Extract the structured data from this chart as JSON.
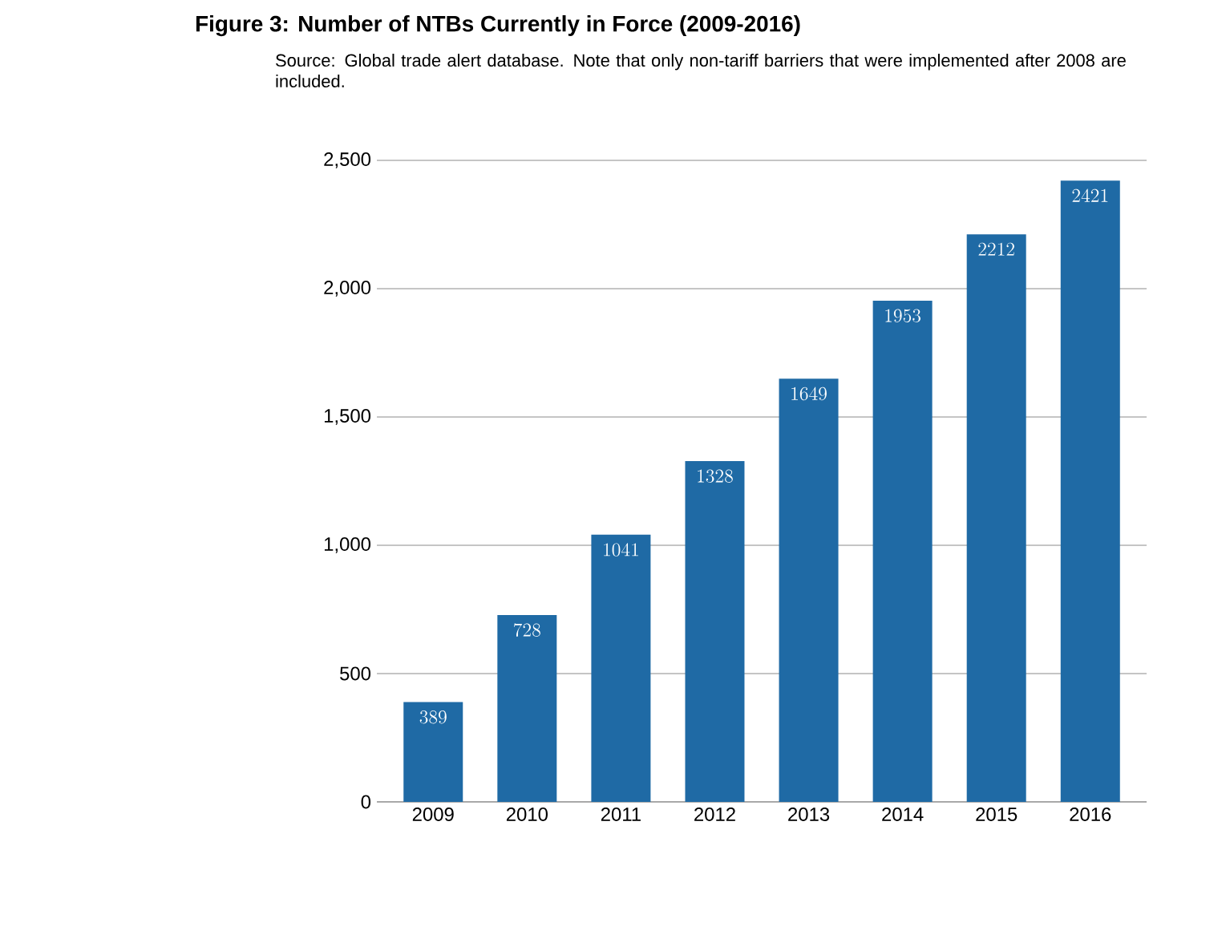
{
  "chart_data": {
    "type": "bar",
    "title": "Figure 3: Number of NTBs Currently in Force (2009-2016)",
    "categories": [
      "2009",
      "2010",
      "2011",
      "2012",
      "2013",
      "2014",
      "2015",
      "2016"
    ],
    "values": [
      389,
      728,
      1041,
      1328,
      1649,
      1953,
      2212,
      2421
    ],
    "color": "#1f6aa5",
    "ylim": [
      0,
      2500
    ],
    "yticks": [
      0,
      500,
      {
        "value": 1000,
        "label": "1,000"
      },
      {
        "value": 1500,
        "label": "1,500"
      },
      {
        "value": 2000,
        "label": "2,000"
      },
      {
        "value": 2500,
        "label": "2,500"
      }
    ],
    "grid": "y",
    "data_labels": true,
    "annotations": [
      "Source: Global trade alert database.  Note that only non-tariff barriers that were implemented after 2008 are included."
    ]
  }
}
